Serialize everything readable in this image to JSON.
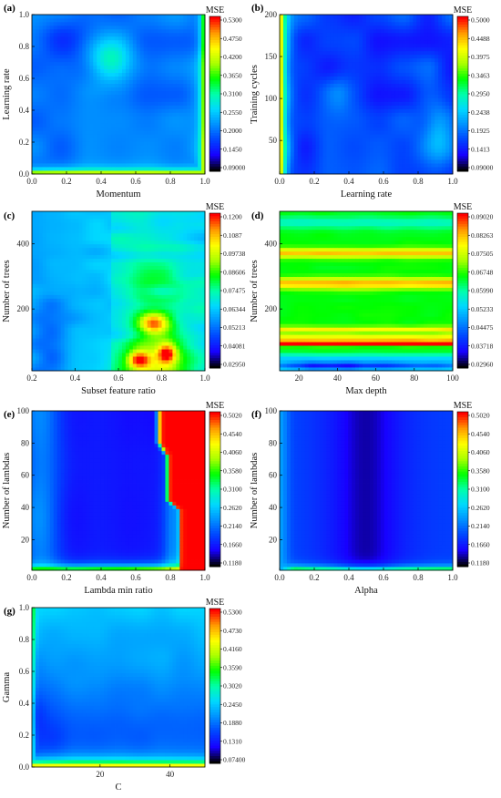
{
  "colors": {
    "map": [
      "#000000",
      "#1700ff",
      "#0044ff",
      "#0090ff",
      "#00d8ff",
      "#00ffaa",
      "#00ff00",
      "#aaff00",
      "#ffff00",
      "#ff9a00",
      "#ff0000"
    ]
  },
  "chart_data": [
    {
      "type": "heatmap",
      "label": "(a)",
      "xlabel": "Momentum",
      "ylabel": "Learning rate",
      "xlim": [
        0.0,
        1.0
      ],
      "ylim": [
        0.0,
        1.0
      ],
      "xticks": [
        "0.0",
        "0.2",
        "0.4",
        "0.6",
        "0.8",
        "1.0"
      ],
      "xtick_values": [
        0.0,
        0.2,
        0.4,
        0.6,
        0.8,
        1.0
      ],
      "yticks": [
        "0.0",
        "0.2",
        "0.4",
        "0.6",
        "0.8",
        "1.0"
      ],
      "ytick_values": [
        0.0,
        0.2,
        0.4,
        0.6,
        0.8,
        1.0
      ],
      "colorbar_title": "MSE",
      "cmin": 0.09,
      "cmax": 0.53,
      "colorbar_ticks": [
        "0.5300",
        "0.4750",
        "0.4200",
        "0.3650",
        "0.3100",
        "0.2550",
        "0.2000",
        "0.1450",
        "0.09000"
      ],
      "surface": "a"
    },
    {
      "type": "heatmap",
      "label": "(b)",
      "xlabel": "Learning rate",
      "ylabel": "Training cycles",
      "xlim": [
        0.0,
        1.0
      ],
      "ylim": [
        10,
        200
      ],
      "xticks": [
        "0.0",
        "0.2",
        "0.4",
        "0.6",
        "0.8",
        "1.0"
      ],
      "xtick_values": [
        0.0,
        0.2,
        0.4,
        0.6,
        0.8,
        1.0
      ],
      "yticks": [
        "50",
        "100",
        "150",
        "200"
      ],
      "ytick_values": [
        50,
        100,
        150,
        200
      ],
      "colorbar_title": "MSE",
      "cmin": 0.09,
      "cmax": 0.5,
      "colorbar_ticks": [
        "0.5000",
        "0.4488",
        "0.3975",
        "0.3463",
        "0.2950",
        "0.2438",
        "0.1925",
        "0.1413",
        "0.09000"
      ],
      "surface": "b"
    },
    {
      "type": "heatmap",
      "label": "(c)",
      "xlabel": "Subset feature ratio",
      "ylabel": "Number of trees",
      "xlim": [
        0.2,
        1.0
      ],
      "ylim": [
        10,
        500
      ],
      "xticks": [
        "0.2",
        "0.4",
        "0.6",
        "0.8",
        "1.0"
      ],
      "xtick_values": [
        0.2,
        0.4,
        0.6,
        0.8,
        1.0
      ],
      "yticks": [
        "200",
        "400"
      ],
      "ytick_values": [
        200,
        400
      ],
      "colorbar_title": "MSE",
      "cmin": 0.0295,
      "cmax": 0.12,
      "colorbar_ticks": [
        "0.1200",
        "0.1087",
        "0.09738",
        "0.08606",
        "0.07475",
        "0.06344",
        "0.05213",
        "0.04081",
        "0.02950"
      ],
      "surface": "c"
    },
    {
      "type": "heatmap",
      "label": "(d)",
      "xlabel": "Max depth",
      "ylabel": "Number of trees",
      "xlim": [
        10,
        100
      ],
      "ylim": [
        10,
        500
      ],
      "xticks": [
        "20",
        "40",
        "60",
        "80",
        "100"
      ],
      "xtick_values": [
        20,
        40,
        60,
        80,
        100
      ],
      "yticks": [
        "200",
        "400"
      ],
      "ytick_values": [
        200,
        400
      ],
      "colorbar_title": "MSE",
      "cmin": 0.0296,
      "cmax": 0.0902,
      "colorbar_ticks": [
        "0.09020",
        "0.08263",
        "0.07505",
        "0.06748",
        "0.05990",
        "0.05233",
        "0.04475",
        "0.03718",
        "0.02960"
      ],
      "surface": "d"
    },
    {
      "type": "heatmap",
      "label": "(e)",
      "xlabel": "Lambda min ratio",
      "ylabel": "Number of lambdas",
      "xlim": [
        0.0,
        1.0
      ],
      "ylim": [
        1,
        100
      ],
      "xticks": [
        "0.0",
        "0.2",
        "0.4",
        "0.6",
        "0.8",
        "1.0"
      ],
      "xtick_values": [
        0.0,
        0.2,
        0.4,
        0.6,
        0.8,
        1.0
      ],
      "yticks": [
        "20",
        "40",
        "60",
        "80",
        "100"
      ],
      "ytick_values": [
        20,
        40,
        60,
        80,
        100
      ],
      "colorbar_title": "MSE",
      "cmin": 0.118,
      "cmax": 0.502,
      "colorbar_ticks": [
        "0.5020",
        "0.4540",
        "0.4060",
        "0.3580",
        "0.3100",
        "0.2620",
        "0.2140",
        "0.1660",
        "0.1180"
      ],
      "surface": "e"
    },
    {
      "type": "heatmap",
      "label": "(f)",
      "xlabel": "Alpha",
      "ylabel": "Number of lambdas",
      "xlim": [
        0.0,
        1.0
      ],
      "ylim": [
        1,
        100
      ],
      "xticks": [
        "0.0",
        "0.2",
        "0.4",
        "0.6",
        "0.8",
        "1.0"
      ],
      "xtick_values": [
        0.0,
        0.2,
        0.4,
        0.6,
        0.8,
        1.0
      ],
      "yticks": [
        "20",
        "40",
        "60",
        "80",
        "100"
      ],
      "ytick_values": [
        20,
        40,
        60,
        80,
        100
      ],
      "colorbar_title": "MSE",
      "cmin": 0.118,
      "cmax": 0.502,
      "colorbar_ticks": [
        "0.5020",
        "0.4540",
        "0.4060",
        "0.3580",
        "0.3100",
        "0.2620",
        "0.2140",
        "0.1660",
        "0.1180"
      ],
      "surface": "f"
    },
    {
      "type": "heatmap",
      "label": "(g)",
      "xlabel": "C",
      "ylabel": "Gamma",
      "xlim": [
        0.5,
        50
      ],
      "ylim": [
        0.0,
        1.0
      ],
      "xticks": [
        "20",
        "40"
      ],
      "xtick_values": [
        20,
        40
      ],
      "yticks": [
        "0.0",
        "0.2",
        "0.4",
        "0.6",
        "0.8",
        "1.0"
      ],
      "ytick_values": [
        0.0,
        0.2,
        0.4,
        0.6,
        0.8,
        1.0
      ],
      "colorbar_title": "MSE",
      "cmin": 0.074,
      "cmax": 0.53,
      "colorbar_ticks": [
        "0.5300",
        "0.4730",
        "0.4160",
        "0.3590",
        "0.3020",
        "0.2450",
        "0.1880",
        "0.1310",
        "0.07400"
      ],
      "surface": "g"
    }
  ]
}
